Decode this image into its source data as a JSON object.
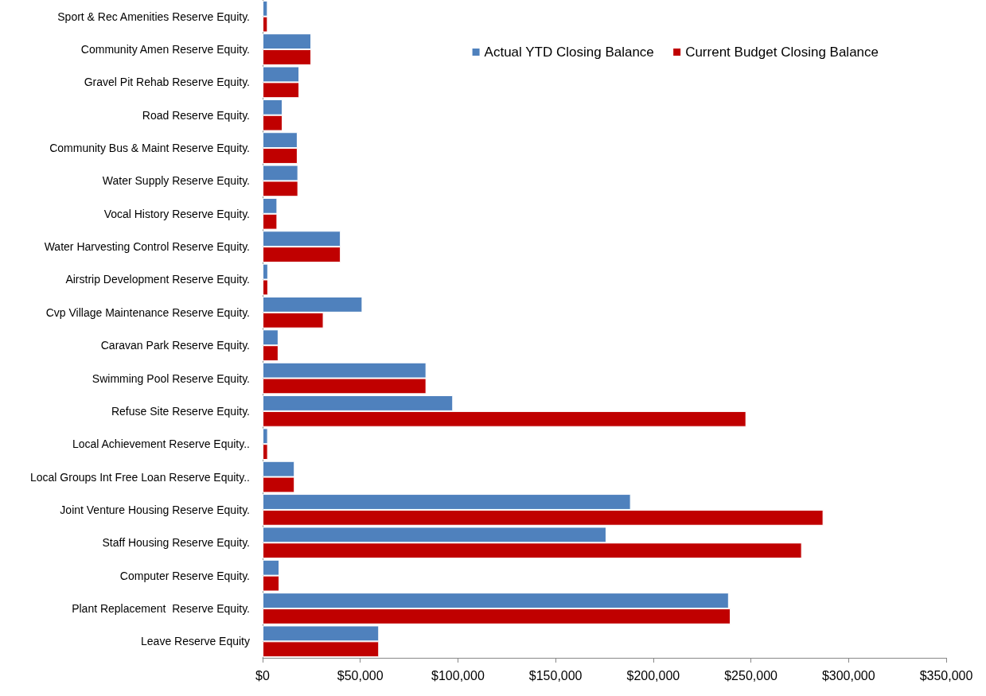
{
  "chart_data": {
    "type": "bar",
    "orientation": "horizontal",
    "categories": [
      "Sport & Rec Amenities Reserve Equity.",
      "Community Amen Reserve Equity.",
      "Gravel Pit Rehab Reserve Equity.",
      "Road Reserve Equity.",
      "Community Bus & Maint Reserve Equity.",
      "Water Supply Reserve Equity.",
      "Vocal History Reserve Equity.",
      "Water Harvesting Control Reserve Equity.",
      "Airstrip Development Reserve Equity.",
      "Cvp Village Maintenance Reserve Equity.",
      "Caravan Park Reserve Equity.",
      "Swimming Pool Reserve Equity.",
      "Refuse Site Reserve Equity.",
      "Local Achievement Reserve Equity..",
      "Local Groups Int Free Loan Reserve Equity..",
      "Joint Venture Housing Reserve Equity.",
      "Staff Housing Reserve Equity.",
      "Computer Reserve Equity.",
      "Plant Replacement  Reserve Equity.",
      "Leave Reserve Equity"
    ],
    "series": [
      {
        "name": "Actual YTD Closing Balance",
        "color": "#4f81bd",
        "values": [
          2600,
          24900,
          18800,
          10200,
          17900,
          18200,
          7500,
          40000,
          2800,
          51100,
          8100,
          83800,
          97500,
          2700,
          16400,
          188500,
          176000,
          8600,
          238700,
          59600
        ]
      },
      {
        "name": "Current Budget Closing Balance",
        "color": "#c00000",
        "values": [
          2600,
          24900,
          18800,
          10200,
          17900,
          18200,
          7500,
          40000,
          2800,
          31200,
          8100,
          83800,
          247600,
          2700,
          16400,
          287100,
          276100,
          8600,
          239600,
          59600
        ]
      }
    ],
    "xlim": [
      0,
      350000
    ],
    "xticks": [
      {
        "value": 0,
        "label": "$0"
      },
      {
        "value": 50000,
        "label": "$50,000"
      },
      {
        "value": 100000,
        "label": "$100,000"
      },
      {
        "value": 150000,
        "label": "$150,000"
      },
      {
        "value": 200000,
        "label": "$200,000"
      },
      {
        "value": 250000,
        "label": "$250,000"
      },
      {
        "value": 300000,
        "label": "$300,000"
      },
      {
        "value": 350000,
        "label": "$350,000"
      }
    ],
    "grid": false,
    "legend": "top right"
  }
}
